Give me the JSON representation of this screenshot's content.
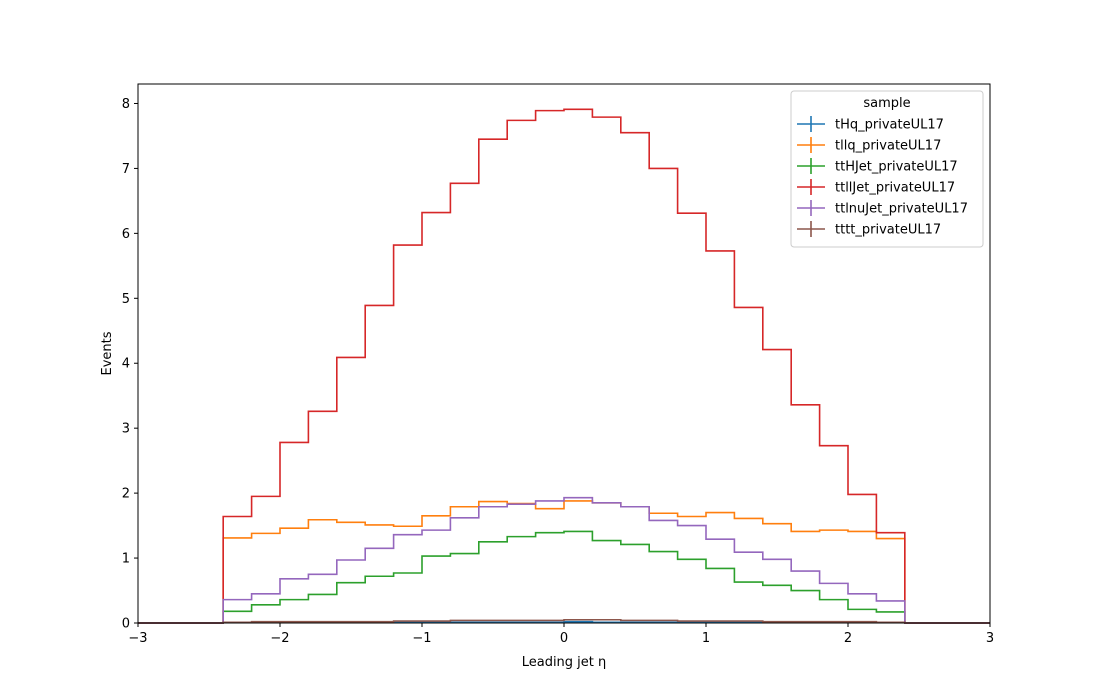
{
  "chart_data": {
    "type": "line",
    "step": true,
    "xlabel": "Leading jet  η",
    "ylabel": "Events",
    "xlim": [
      -3,
      3
    ],
    "ylim": [
      0,
      8.3
    ],
    "xticks": [
      -3,
      -2,
      -1,
      0,
      1,
      2,
      3
    ],
    "xtick_labels": [
      "−3",
      "−2",
      "−1",
      "0",
      "1",
      "2",
      "3"
    ],
    "yticks": [
      0,
      1,
      2,
      3,
      4,
      5,
      6,
      7,
      8
    ],
    "ytick_labels": [
      "0",
      "1",
      "2",
      "3",
      "4",
      "5",
      "6",
      "7",
      "8"
    ],
    "bin_edges": [
      -2.4,
      -2.2,
      -2.0,
      -1.8,
      -1.6,
      -1.4,
      -1.2,
      -1.0,
      -0.8,
      -0.6,
      -0.4,
      -0.2,
      0.0,
      0.2,
      0.4,
      0.6,
      0.8,
      1.0,
      1.2,
      1.4,
      1.6,
      1.8,
      2.0,
      2.2,
      2.4
    ],
    "legend": {
      "title": "sample",
      "position": "top-right"
    },
    "grid": false,
    "series": [
      {
        "name": "tHq_privateUL17",
        "color": "#1f77b4",
        "values": [
          0.01,
          0.01,
          0.01,
          0.01,
          0.01,
          0.01,
          0.01,
          0.01,
          0.01,
          0.01,
          0.01,
          0.01,
          0.02,
          0.01,
          0.01,
          0.01,
          0.01,
          0.01,
          0.01,
          0.01,
          0.01,
          0.01,
          0.01,
          0.01
        ]
      },
      {
        "name": "tllq_privateUL17",
        "color": "#ff7f0e",
        "values": [
          1.31,
          1.38,
          1.46,
          1.59,
          1.55,
          1.51,
          1.49,
          1.65,
          1.79,
          1.87,
          1.84,
          1.76,
          1.88,
          1.85,
          1.79,
          1.69,
          1.64,
          1.7,
          1.61,
          1.53,
          1.41,
          1.43,
          1.41,
          1.3
        ]
      },
      {
        "name": "ttHJet_privateUL17",
        "color": "#2ca02c",
        "values": [
          0.18,
          0.28,
          0.36,
          0.44,
          0.62,
          0.72,
          0.77,
          1.03,
          1.07,
          1.25,
          1.33,
          1.39,
          1.41,
          1.27,
          1.21,
          1.1,
          0.98,
          0.84,
          0.63,
          0.58,
          0.5,
          0.36,
          0.21,
          0.17
        ]
      },
      {
        "name": "ttllJet_privateUL17",
        "color": "#d62728",
        "values": [
          1.64,
          1.95,
          2.78,
          3.26,
          4.09,
          4.89,
          5.82,
          6.32,
          6.77,
          7.45,
          7.74,
          7.89,
          7.91,
          7.79,
          7.55,
          7.0,
          6.31,
          5.73,
          4.86,
          4.21,
          3.36,
          2.73,
          1.98,
          1.39
        ]
      },
      {
        "name": "ttlnuJet_privateUL17",
        "color": "#9467bd",
        "values": [
          0.36,
          0.45,
          0.68,
          0.75,
          0.97,
          1.15,
          1.36,
          1.43,
          1.62,
          1.79,
          1.83,
          1.88,
          1.93,
          1.85,
          1.79,
          1.58,
          1.5,
          1.29,
          1.09,
          0.98,
          0.8,
          0.61,
          0.45,
          0.34
        ]
      },
      {
        "name": "tttt_privateUL17",
        "color": "#8c564b",
        "values": [
          0.01,
          0.02,
          0.02,
          0.02,
          0.02,
          0.02,
          0.03,
          0.03,
          0.04,
          0.04,
          0.04,
          0.04,
          0.05,
          0.05,
          0.04,
          0.04,
          0.03,
          0.03,
          0.03,
          0.02,
          0.02,
          0.02,
          0.02,
          0.01
        ]
      }
    ]
  }
}
